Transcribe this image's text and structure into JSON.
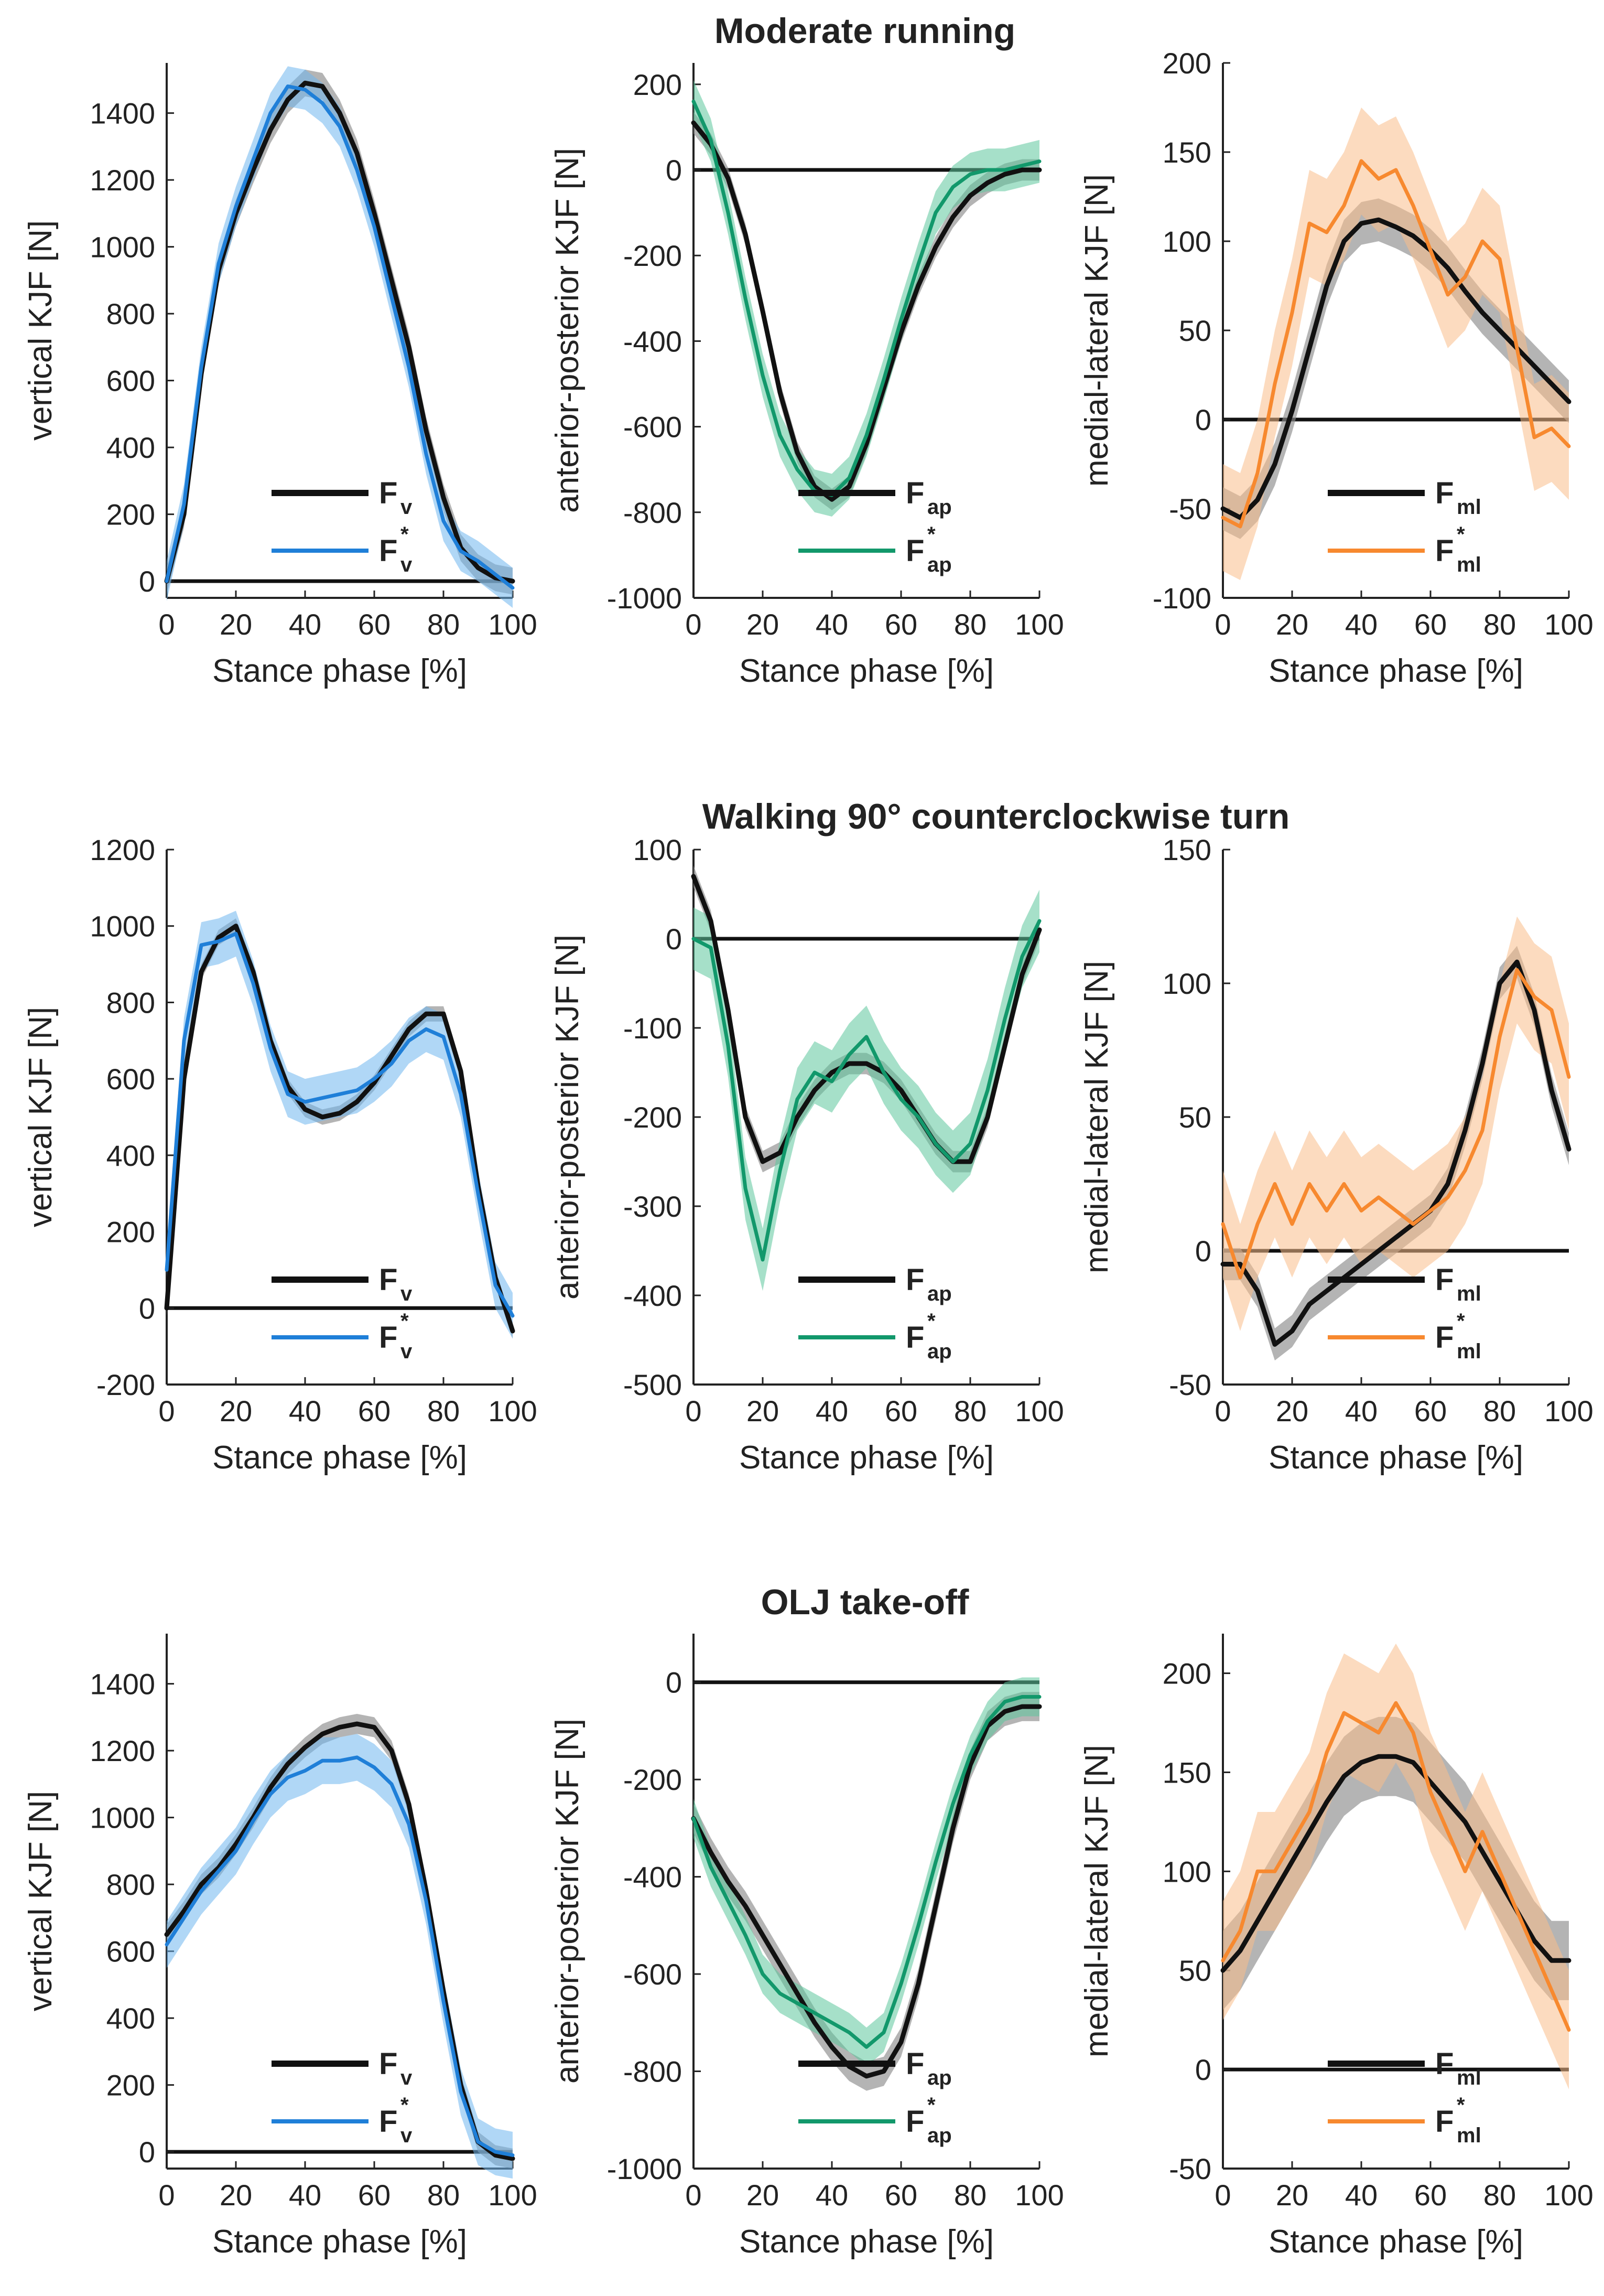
{
  "figure": {
    "row_titles": [
      "Moderate running",
      "Walking 90° counterclockwise turn",
      "OLJ take-off"
    ]
  },
  "colors": {
    "measured_line": "#111111",
    "measured_band": "#8c8c8c",
    "vertical": "#1f7fd8",
    "vertical_band": "#6fb7ee",
    "anteroposterior": "#12986b",
    "anteroposterior_band": "#5cc69c",
    "mediolateral": "#f7892f",
    "mediolateral_band": "#f9bd8a"
  },
  "chart_data": [
    {
      "type": "line",
      "row": 0,
      "col": 0,
      "component": "v",
      "xlabel": "Stance phase [%]",
      "ylabel": "vertical KJF [N]",
      "xlim": [
        0,
        100
      ],
      "ylim": [
        -50,
        1550
      ],
      "xticks": [
        0,
        20,
        40,
        60,
        80,
        100
      ],
      "yticks": [
        0,
        200,
        400,
        600,
        800,
        1000,
        1200,
        1400
      ],
      "legend": [
        {
          "base": "F",
          "sub": "v",
          "star": false
        },
        {
          "base": "F",
          "sub": "v",
          "star": true
        }
      ],
      "x": [
        0,
        5,
        10,
        15,
        20,
        25,
        30,
        35,
        40,
        45,
        50,
        55,
        60,
        65,
        70,
        75,
        80,
        85,
        90,
        95,
        100
      ],
      "series": [
        {
          "name": "F_v",
          "values": [
            0,
            200,
            620,
            930,
            1100,
            1230,
            1350,
            1440,
            1490,
            1480,
            1400,
            1280,
            1100,
            900,
            700,
            450,
            250,
            100,
            40,
            10,
            0
          ],
          "band": 40
        },
        {
          "name": "F*_v",
          "values": [
            0,
            230,
            640,
            950,
            1120,
            1260,
            1400,
            1480,
            1470,
            1430,
            1360,
            1230,
            1060,
            850,
            640,
            380,
            180,
            90,
            60,
            20,
            -20
          ],
          "band": 60
        }
      ]
    },
    {
      "type": "line",
      "row": 0,
      "col": 1,
      "component": "ap",
      "xlabel": "Stance phase [%]",
      "ylabel": "anterior-posterior KJF [N]",
      "xlim": [
        0,
        100
      ],
      "ylim": [
        -1000,
        250
      ],
      "xticks": [
        0,
        20,
        40,
        60,
        80,
        100
      ],
      "yticks": [
        200,
        0,
        -200,
        -400,
        -600,
        -800,
        -1000
      ],
      "legend": [
        {
          "base": "F",
          "sub": "ap",
          "star": false
        },
        {
          "base": "F",
          "sub": "ap",
          "star": true
        }
      ],
      "x": [
        0,
        5,
        10,
        15,
        20,
        25,
        30,
        35,
        40,
        45,
        50,
        55,
        60,
        65,
        70,
        75,
        80,
        85,
        90,
        95,
        100
      ],
      "series": [
        {
          "name": "F_ap",
          "values": [
            110,
            60,
            -20,
            -150,
            -330,
            -520,
            -660,
            -740,
            -770,
            -740,
            -640,
            -510,
            -380,
            -270,
            -180,
            -110,
            -60,
            -30,
            -10,
            0,
            0
          ],
          "band": 25
        },
        {
          "name": "F*_ap",
          "values": [
            160,
            70,
            -100,
            -300,
            -480,
            -620,
            -700,
            -750,
            -760,
            -720,
            -620,
            -490,
            -350,
            -220,
            -100,
            -40,
            -10,
            0,
            0,
            10,
            20
          ],
          "band": 50
        }
      ]
    },
    {
      "type": "line",
      "row": 0,
      "col": 2,
      "component": "ml",
      "xlabel": "Stance phase [%]",
      "ylabel": "medial-lateral KJF [N]",
      "xlim": [
        0,
        100
      ],
      "ylim": [
        -100,
        200
      ],
      "xticks": [
        0,
        20,
        40,
        60,
        80,
        100
      ],
      "yticks": [
        200,
        150,
        100,
        50,
        0,
        -50,
        -100
      ],
      "legend": [
        {
          "base": "F",
          "sub": "ml",
          "star": false
        },
        {
          "base": "F",
          "sub": "ml",
          "star": true
        }
      ],
      "x": [
        0,
        5,
        10,
        15,
        20,
        25,
        30,
        35,
        40,
        45,
        50,
        55,
        60,
        65,
        70,
        75,
        80,
        85,
        90,
        95,
        100
      ],
      "series": [
        {
          "name": "F_ml",
          "values": [
            -50,
            -55,
            -45,
            -25,
            5,
            40,
            75,
            100,
            110,
            112,
            108,
            103,
            95,
            85,
            72,
            60,
            50,
            40,
            30,
            20,
            10
          ],
          "band": 12
        },
        {
          "name": "F*_ml",
          "values": [
            -55,
            -60,
            -30,
            20,
            60,
            110,
            105,
            120,
            145,
            135,
            140,
            120,
            95,
            70,
            80,
            100,
            90,
            40,
            -10,
            -5,
            -15
          ],
          "band": 30
        }
      ]
    },
    {
      "type": "line",
      "row": 1,
      "col": 0,
      "component": "v",
      "xlabel": "Stance phase [%]",
      "ylabel": "vertical KJF [N]",
      "xlim": [
        0,
        100
      ],
      "ylim": [
        -200,
        1200
      ],
      "xticks": [
        0,
        20,
        40,
        60,
        80,
        100
      ],
      "yticks": [
        1200,
        1000,
        800,
        600,
        400,
        200,
        0,
        -200
      ],
      "legend": [
        {
          "base": "F",
          "sub": "v",
          "star": false
        },
        {
          "base": "F",
          "sub": "v",
          "star": true
        }
      ],
      "x": [
        0,
        5,
        10,
        15,
        20,
        25,
        30,
        35,
        40,
        45,
        50,
        55,
        60,
        65,
        70,
        75,
        80,
        85,
        90,
        95,
        100
      ],
      "series": [
        {
          "name": "F_v",
          "values": [
            0,
            600,
            880,
            970,
            1000,
            880,
            700,
            580,
            520,
            500,
            510,
            540,
            590,
            660,
            730,
            770,
            770,
            620,
            320,
            80,
            -60
          ],
          "band": 20
        },
        {
          "name": "F*_v",
          "values": [
            100,
            700,
            950,
            960,
            980,
            850,
            680,
            560,
            540,
            550,
            560,
            570,
            600,
            640,
            700,
            730,
            710,
            560,
            300,
            60,
            -20
          ],
          "band": 60
        }
      ]
    },
    {
      "type": "line",
      "row": 1,
      "col": 1,
      "component": "ap",
      "xlabel": "Stance phase [%]",
      "ylabel": "anterior-posterior KJF [N]",
      "xlim": [
        0,
        100
      ],
      "ylim": [
        -500,
        100
      ],
      "xticks": [
        0,
        20,
        40,
        60,
        80,
        100
      ],
      "yticks": [
        100,
        0,
        -100,
        -200,
        -300,
        -400,
        -500
      ],
      "legend": [
        {
          "base": "F",
          "sub": "ap",
          "star": false
        },
        {
          "base": "F",
          "sub": "ap",
          "star": true
        }
      ],
      "x": [
        0,
        5,
        10,
        15,
        20,
        25,
        30,
        35,
        40,
        45,
        50,
        55,
        60,
        65,
        70,
        75,
        80,
        85,
        90,
        95,
        100
      ],
      "series": [
        {
          "name": "F_ap",
          "values": [
            70,
            20,
            -80,
            -200,
            -250,
            -240,
            -200,
            -170,
            -150,
            -140,
            -140,
            -150,
            -170,
            -200,
            -230,
            -250,
            -250,
            -200,
            -120,
            -40,
            10
          ],
          "band": 12
        },
        {
          "name": "F*_ap",
          "values": [
            0,
            -10,
            -120,
            -280,
            -360,
            -260,
            -180,
            -150,
            -160,
            -130,
            -110,
            -150,
            -180,
            -200,
            -230,
            -250,
            -230,
            -170,
            -90,
            -20,
            20
          ],
          "band": 35
        }
      ]
    },
    {
      "type": "line",
      "row": 1,
      "col": 2,
      "component": "ml",
      "xlabel": "Stance phase [%]",
      "ylabel": "medial-lateral KJF [N]",
      "xlim": [
        0,
        100
      ],
      "ylim": [
        -50,
        150
      ],
      "xticks": [
        0,
        20,
        40,
        60,
        80,
        100
      ],
      "yticks": [
        150,
        100,
        50,
        0,
        -50
      ],
      "legend": [
        {
          "base": "F",
          "sub": "ml",
          "star": false
        },
        {
          "base": "F",
          "sub": "ml",
          "star": true
        }
      ],
      "x": [
        0,
        5,
        10,
        15,
        20,
        25,
        30,
        35,
        40,
        45,
        50,
        55,
        60,
        65,
        70,
        75,
        80,
        85,
        90,
        95,
        100
      ],
      "series": [
        {
          "name": "F_ml",
          "values": [
            -5,
            -5,
            -15,
            -35,
            -30,
            -20,
            -15,
            -10,
            -5,
            0,
            5,
            10,
            15,
            25,
            45,
            70,
            100,
            108,
            90,
            60,
            38
          ],
          "band": 6
        },
        {
          "name": "F*_ml",
          "values": [
            10,
            -10,
            10,
            25,
            10,
            25,
            15,
            25,
            15,
            20,
            15,
            10,
            15,
            20,
            30,
            45,
            80,
            105,
            95,
            90,
            65
          ],
          "band": 20
        }
      ]
    },
    {
      "type": "line",
      "row": 2,
      "col": 0,
      "component": "v",
      "xlabel": "Stance phase [%]",
      "ylabel": "vertical KJF [N]",
      "xlim": [
        0,
        100
      ],
      "ylim": [
        -50,
        1550
      ],
      "xticks": [
        0,
        20,
        40,
        60,
        80,
        100
      ],
      "yticks": [
        1400,
        1200,
        1000,
        800,
        600,
        400,
        200,
        0
      ],
      "legend": [
        {
          "base": "F",
          "sub": "v",
          "star": false
        },
        {
          "base": "F",
          "sub": "v",
          "star": true
        }
      ],
      "x": [
        0,
        5,
        10,
        15,
        20,
        25,
        30,
        35,
        40,
        45,
        50,
        55,
        60,
        65,
        70,
        75,
        80,
        85,
        90,
        95,
        100
      ],
      "series": [
        {
          "name": "F_v",
          "values": [
            650,
            720,
            800,
            850,
            920,
            1000,
            1090,
            1160,
            1210,
            1250,
            1270,
            1280,
            1270,
            1200,
            1040,
            780,
            480,
            200,
            30,
            -10,
            -20
          ],
          "band": 30
        },
        {
          "name": "F*_v",
          "values": [
            620,
            700,
            780,
            840,
            900,
            990,
            1070,
            1120,
            1140,
            1170,
            1170,
            1180,
            1150,
            1100,
            980,
            750,
            450,
            180,
            30,
            0,
            -10
          ],
          "band": 70
        }
      ]
    },
    {
      "type": "line",
      "row": 2,
      "col": 1,
      "component": "ap",
      "xlabel": "Stance phase [%]",
      "ylabel": "anterior-posterior KJF [N]",
      "xlim": [
        0,
        100
      ],
      "ylim": [
        -1000,
        100
      ],
      "xticks": [
        0,
        20,
        40,
        60,
        80,
        100
      ],
      "yticks": [
        0,
        -200,
        -400,
        -600,
        -800,
        -1000
      ],
      "legend": [
        {
          "base": "F",
          "sub": "ap",
          "star": false
        },
        {
          "base": "F",
          "sub": "ap",
          "star": true
        }
      ],
      "x": [
        0,
        5,
        10,
        15,
        20,
        25,
        30,
        35,
        40,
        45,
        50,
        55,
        60,
        65,
        70,
        75,
        80,
        85,
        90,
        95,
        100
      ],
      "series": [
        {
          "name": "F_ap",
          "values": [
            -280,
            -350,
            -410,
            -460,
            -520,
            -580,
            -640,
            -700,
            -750,
            -790,
            -810,
            -800,
            -740,
            -620,
            -460,
            -300,
            -170,
            -90,
            -60,
            -50,
            -50
          ],
          "band": 30
        },
        {
          "name": "F*_ap",
          "values": [
            -280,
            -380,
            -450,
            -520,
            -600,
            -640,
            -660,
            -680,
            -700,
            -720,
            -750,
            -720,
            -620,
            -500,
            -370,
            -250,
            -150,
            -80,
            -40,
            -30,
            -30
          ],
          "band": 40
        }
      ]
    },
    {
      "type": "line",
      "row": 2,
      "col": 2,
      "component": "ml",
      "xlabel": "Stance phase [%]",
      "ylabel": "medial-lateral KJF [N]",
      "xlim": [
        0,
        100
      ],
      "ylim": [
        -50,
        220
      ],
      "xticks": [
        0,
        20,
        40,
        60,
        80,
        100
      ],
      "yticks": [
        200,
        150,
        100,
        50,
        0,
        -50
      ],
      "legend": [
        {
          "base": "F",
          "sub": "ml",
          "star": false
        },
        {
          "base": "F",
          "sub": "ml",
          "star": true
        }
      ],
      "x": [
        0,
        5,
        10,
        15,
        20,
        25,
        30,
        35,
        40,
        45,
        50,
        55,
        60,
        65,
        70,
        75,
        80,
        85,
        90,
        95,
        100
      ],
      "series": [
        {
          "name": "F_ml",
          "values": [
            50,
            60,
            75,
            90,
            105,
            120,
            135,
            148,
            155,
            158,
            158,
            155,
            145,
            135,
            125,
            110,
            95,
            80,
            65,
            55,
            55
          ],
          "band": 20
        },
        {
          "name": "F*_ml",
          "values": [
            55,
            70,
            100,
            100,
            115,
            130,
            160,
            180,
            175,
            170,
            185,
            170,
            140,
            120,
            100,
            120,
            100,
            80,
            60,
            40,
            20
          ],
          "band": 30
        }
      ]
    }
  ]
}
